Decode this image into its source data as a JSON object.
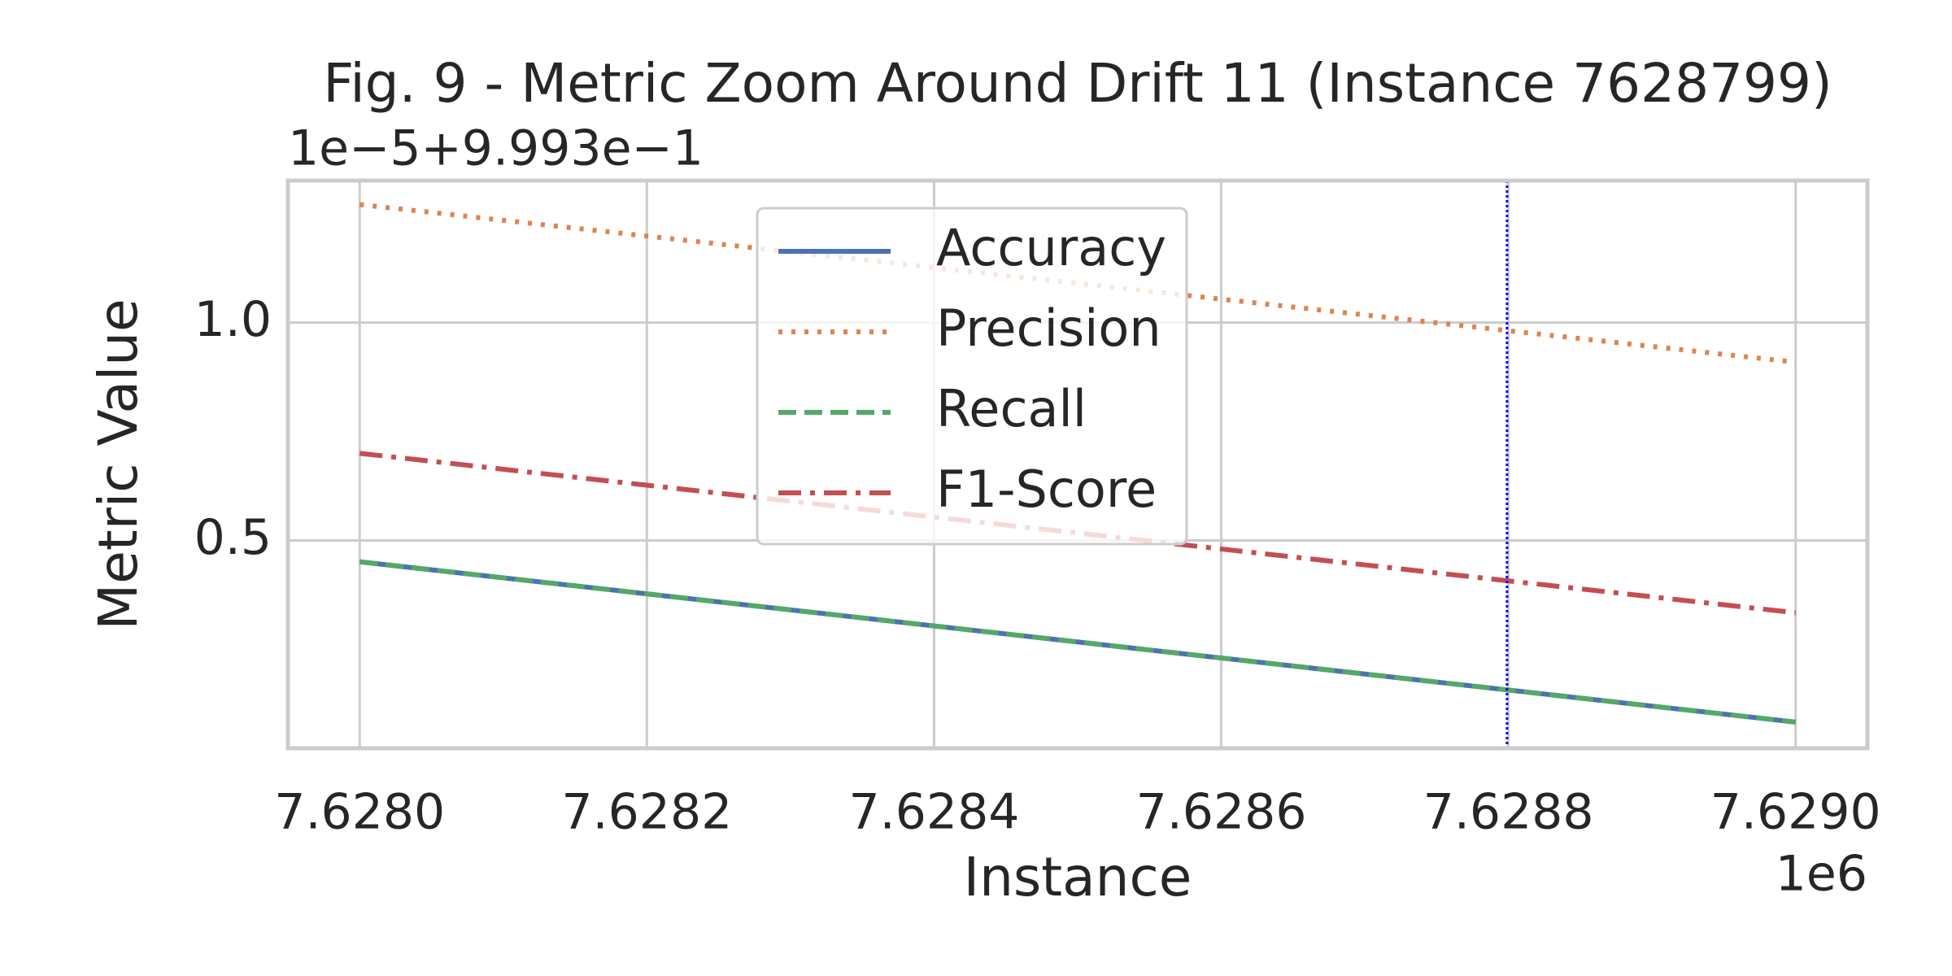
{
  "chart_data": {
    "type": "line",
    "title": "Fig. 9 - Metric Zoom Around Drift 11 (Instance 7628799)",
    "x_label": "Instance",
    "y_label": "Metric Value",
    "y_offset_label": "1e−5+9.993e−1",
    "x_offset_label": "1e6",
    "x": [
      7.628,
      7.629
    ],
    "series": [
      {
        "name": "Accuracy",
        "color": "#4c72b0",
        "dash": "solid",
        "values": [
          0.451,
          0.083
        ]
      },
      {
        "name": "Precision",
        "color": "#dd8452",
        "dash": "dotted",
        "values": [
          1.271,
          0.909
        ]
      },
      {
        "name": "Recall",
        "color": "#55a868",
        "dash": "dashed",
        "values": [
          0.451,
          0.083
        ]
      },
      {
        "name": "F1-Score",
        "color": "#c44e52",
        "dash": "dashdot",
        "values": [
          0.7,
          0.334
        ]
      }
    ],
    "vline": {
      "x": 7.628799,
      "color": "#0000ff"
    },
    "xlim": [
      7.62795,
      7.62905
    ],
    "ylim": [
      0.023,
      1.326
    ],
    "xticks": [
      {
        "value": 7.628,
        "label": "7.6280"
      },
      {
        "value": 7.6282,
        "label": "7.6282"
      },
      {
        "value": 7.6284,
        "label": "7.6284"
      },
      {
        "value": 7.6286,
        "label": "7.6286"
      },
      {
        "value": 7.6288,
        "label": "7.6288"
      },
      {
        "value": 7.629,
        "label": "7.6290"
      }
    ],
    "yticks": [
      {
        "value": 0.5,
        "label": "0.5"
      },
      {
        "value": 1,
        "label": "1.0"
      }
    ],
    "grid": true,
    "legend": "upper center"
  }
}
